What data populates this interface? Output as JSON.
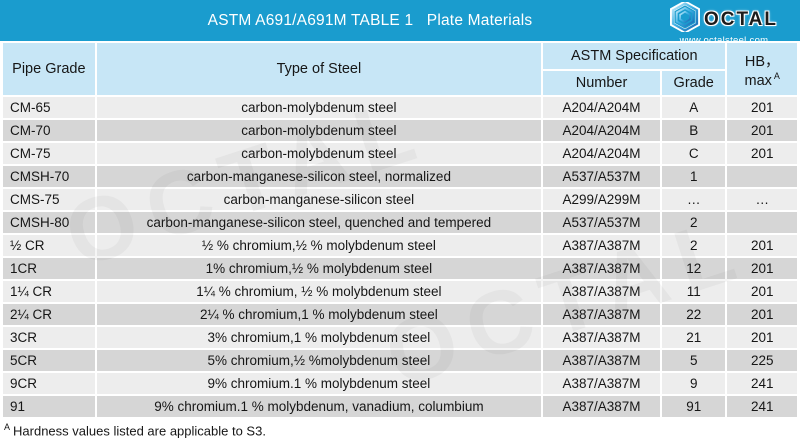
{
  "banner": {
    "title": "ASTM A691/A691M TABLE 1   Plate Materials",
    "logo": {
      "brand": "OCTAL",
      "website": "www.octalsteel.com",
      "icon": "hexagon-cube-icon"
    }
  },
  "colors": {
    "banner_bg": "#1A9CCE",
    "header_bg": "#C7E6F6",
    "row_light": "#EDEDED",
    "row_dark": "#D6D6D6",
    "title_text": "#FFFFFF",
    "body_text": "#161616"
  },
  "table": {
    "headers": {
      "pipe_grade": "Pipe Grade",
      "type_of_steel": "Type of Steel",
      "astm_specification": "ASTM Specification",
      "number": "Number",
      "grade": "Grade",
      "hb_max": "HB，max",
      "hb_max_sup": "A"
    },
    "cell_names": [
      "pipe-grade",
      "type-of-steel",
      "astm-number",
      "astm-grade",
      "hb-max"
    ],
    "rows": [
      {
        "cells": [
          "CM-65",
          "carbon-molybdenum steel",
          "A204/A204M",
          "A",
          "201"
        ]
      },
      {
        "cells": [
          "CM-70",
          "carbon-molybdenum steel",
          "A204/A204M",
          "B",
          "201"
        ]
      },
      {
        "cells": [
          "CM-75",
          "carbon-molybdenum steel",
          "A204/A204M",
          "C",
          "201"
        ]
      },
      {
        "cells": [
          "CMSH-70",
          "carbon-manganese-silicon steel, normalized",
          "A537/A537M",
          "1",
          ""
        ]
      },
      {
        "cells": [
          "CMS-75",
          "carbon-manganese-silicon steel",
          "A299/A299M",
          "…",
          "…"
        ]
      },
      {
        "cells": [
          "CMSH-80",
          "carbon-manganese-silicon steel, quenched and tempered",
          "A537/A537M",
          "2",
          ""
        ]
      },
      {
        "cells": [
          "½  CR",
          "½  % chromium,½  % molybdenum steel",
          "A387/A387M",
          "2",
          "201"
        ]
      },
      {
        "cells": [
          "1CR",
          "1% chromium,½  % molybdenum steel",
          "A387/A387M",
          "12",
          "201"
        ]
      },
      {
        "cells": [
          "1¼  CR",
          "1¼ % chromium, ½ % molybdenum steel",
          "A387/A387M",
          "11",
          "201"
        ]
      },
      {
        "cells": [
          "2¼  CR",
          "2¼ % chromium,1 % molybdenum steel",
          "A387/A387M",
          "22",
          "201"
        ]
      },
      {
        "cells": [
          "3CR",
          "3% chromium,1 % molybdenum steel",
          "A387/A387M",
          "21",
          "201"
        ]
      },
      {
        "cells": [
          "5CR",
          "5% chromium,½ %molybdenum steel",
          "A387/A387M",
          "5",
          "225"
        ]
      },
      {
        "cells": [
          "9CR",
          "9% chromium.1 % molybdenum steel",
          "A387/A387M",
          "9",
          "241"
        ]
      },
      {
        "cells": [
          "91",
          "9% chromium.1 % molybdenum, vanadium, columbium",
          "A387/A387M",
          "91",
          "241"
        ]
      }
    ]
  },
  "footnote": {
    "sup": "A",
    "text": "Hardness values listed are applicable to S3."
  }
}
